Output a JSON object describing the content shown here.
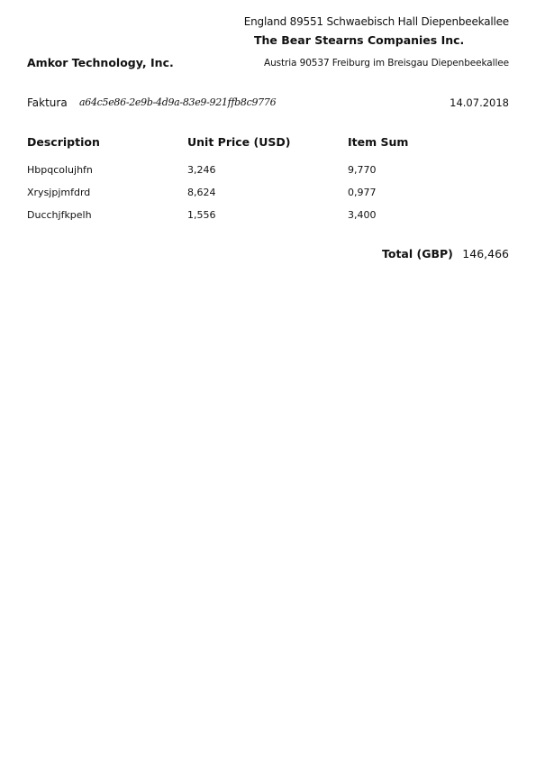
{
  "sender": {
    "address": "England 89551 Schwaebisch Hall Diepenbeekallee",
    "name": "The Bear Stearns Companies Inc."
  },
  "recipient": {
    "name": "Amkor Technology, Inc.",
    "address": "Austria 90537 Freiburg im Breisgau Diepenbeekallee"
  },
  "invoice": {
    "label": "Faktura",
    "id": "a64c5e86-2e9b-4d9a-83e9-921ffb8c9776",
    "date": "14.07.2018"
  },
  "table": {
    "headers": [
      "Description",
      "Unit Price (USD)",
      "Item Sum"
    ],
    "rows": [
      [
        "Hbpqcolujhfn",
        "3,246",
        "9,770"
      ],
      [
        "Xrysjpjmfdrd",
        "8,624",
        "0,977"
      ],
      [
        "Ducchjfkpelh",
        "1,556",
        "3,400"
      ]
    ]
  },
  "total": {
    "label": "Total (GBP)",
    "value": "146,466"
  }
}
